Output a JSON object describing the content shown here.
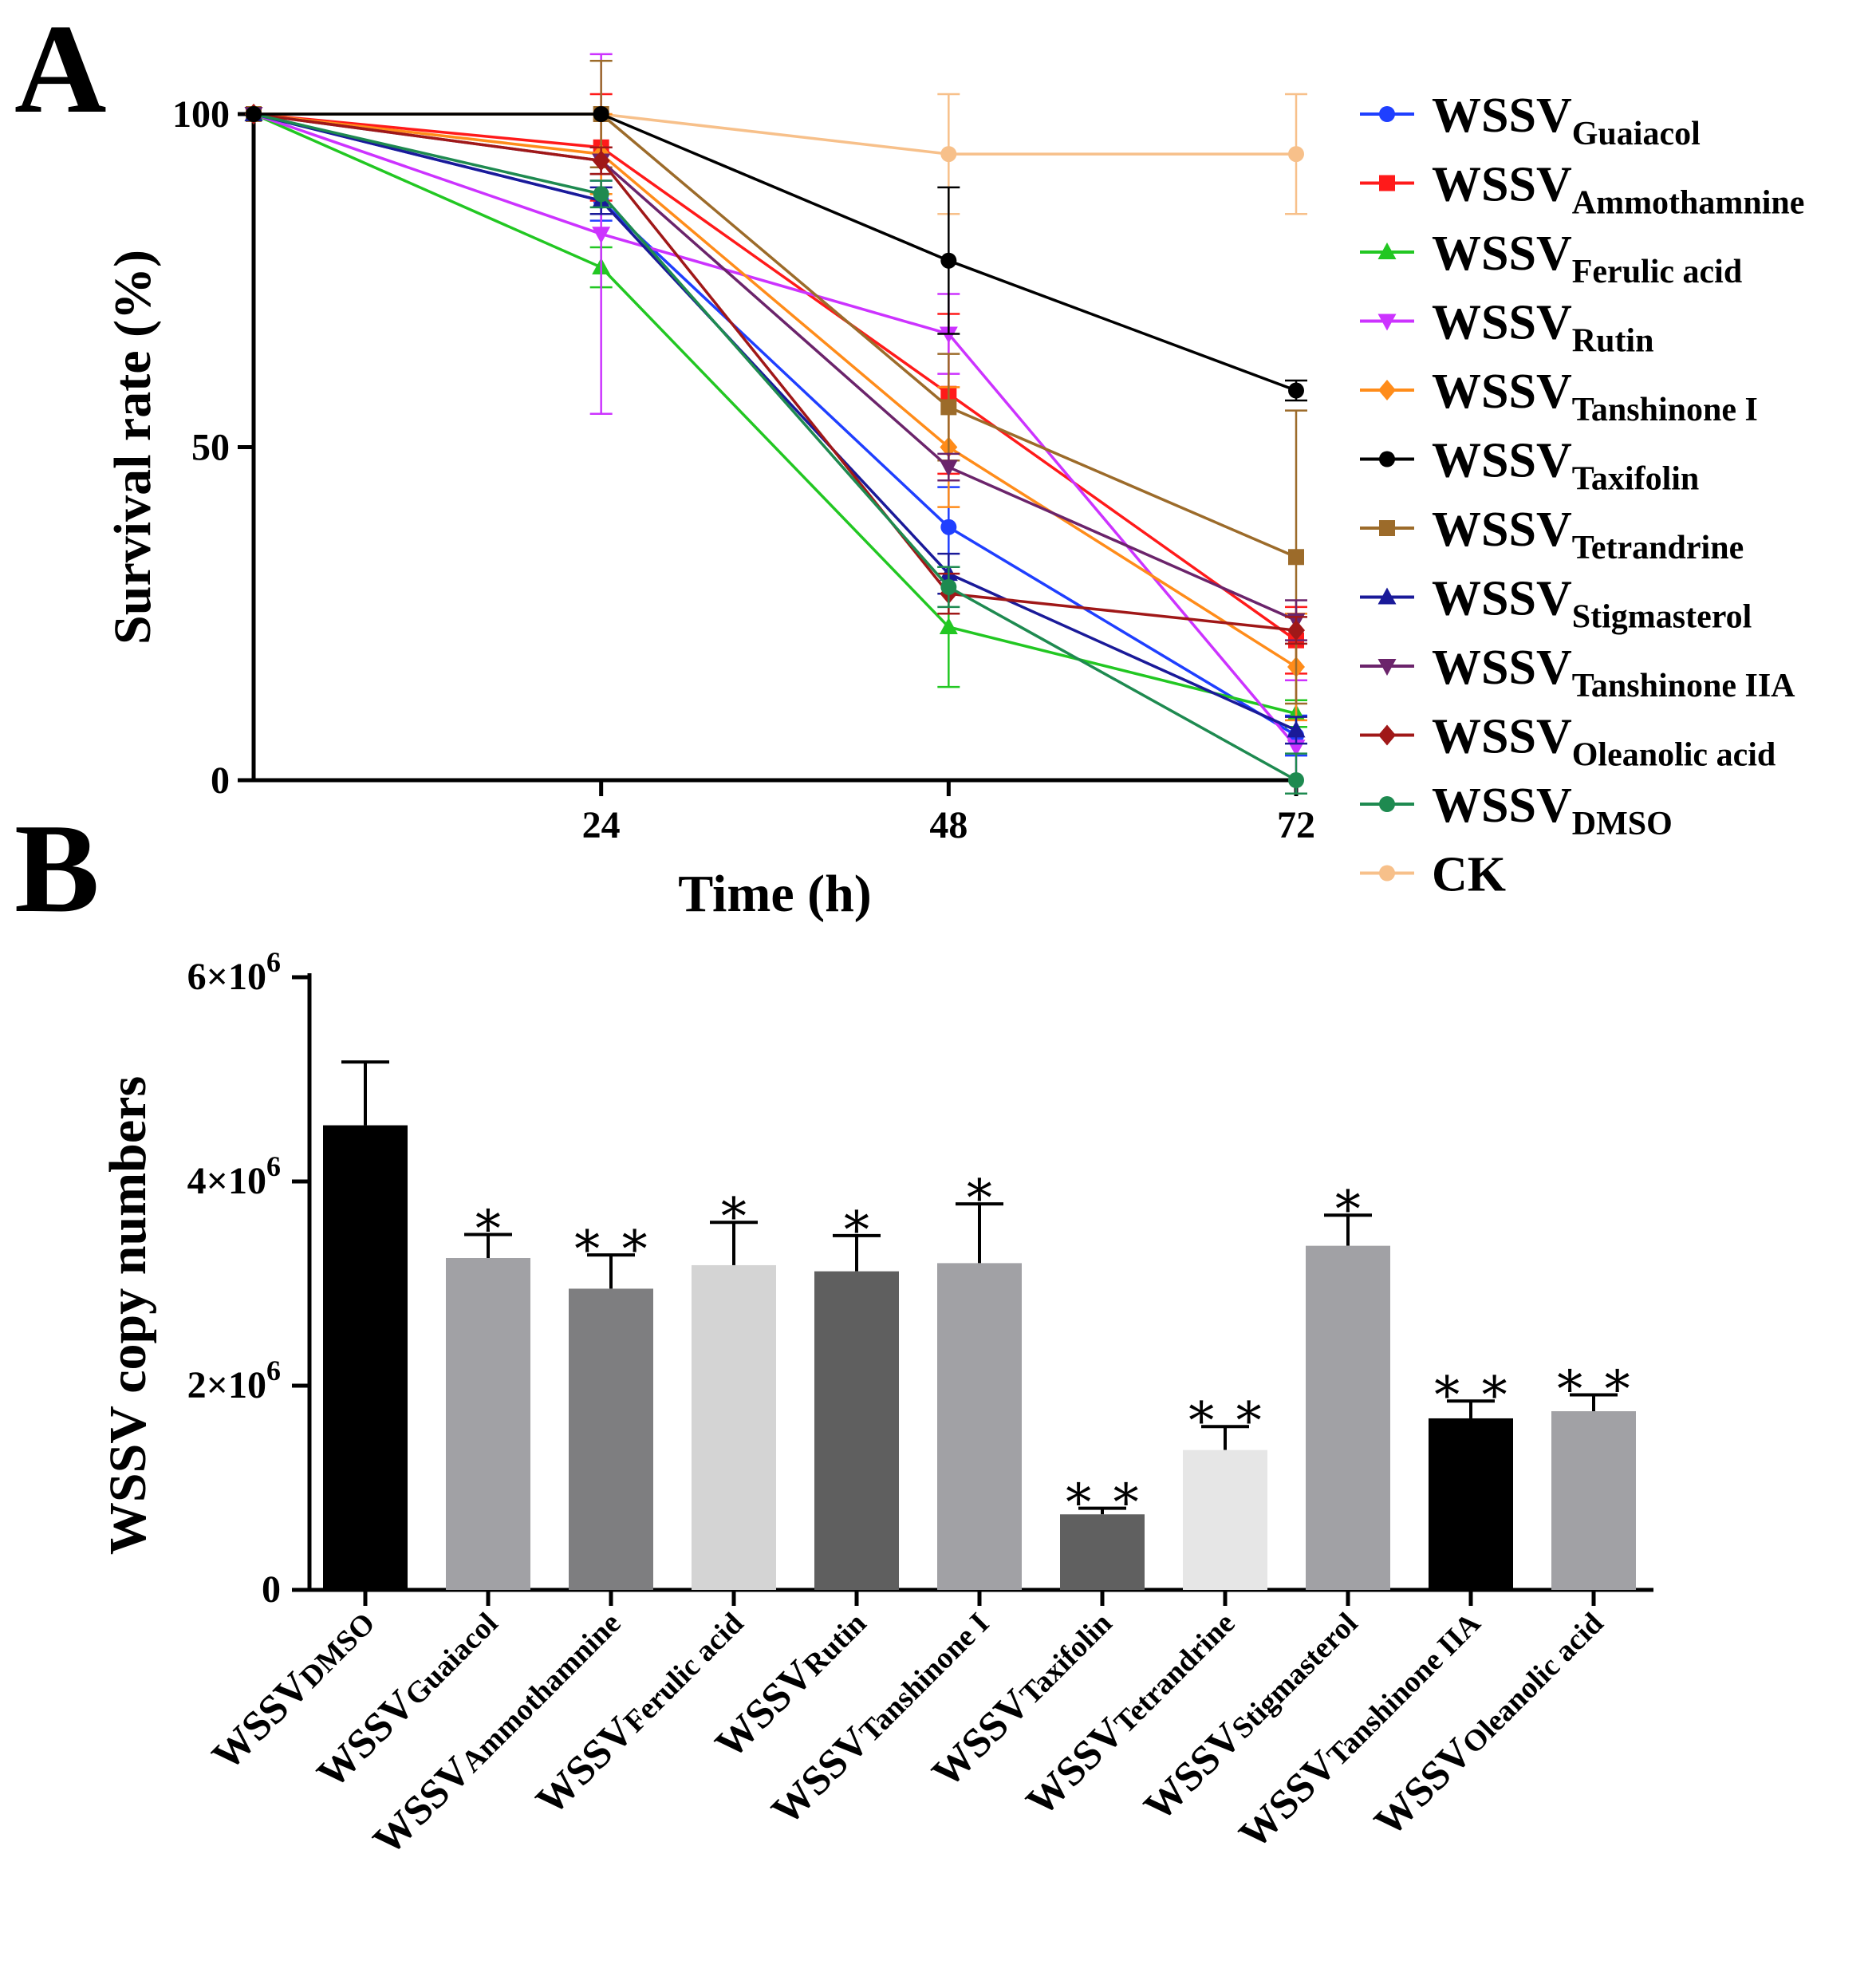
{
  "chart_data": [
    {
      "panel": "A",
      "type": "line",
      "xlabel": "Time (h)",
      "ylabel": "Survival rate (%)",
      "x": [
        0,
        24,
        48,
        72
      ],
      "x_tick_labels": [
        "24",
        "48",
        "72"
      ],
      "y_tick_labels": [
        "0",
        "50",
        "100"
      ],
      "ylim": [
        0,
        100
      ],
      "xlim": [
        0,
        72
      ],
      "legend_position": "right",
      "series": [
        {
          "name": "WSSV",
          "sub": "Guaiacol",
          "color": "#1f3fff",
          "marker": "circle",
          "values": [
            100,
            87,
            38,
            6.7
          ],
          "errors": [
            0,
            3,
            6,
            3
          ]
        },
        {
          "name": "WSSV",
          "sub": "Ammothamnine",
          "color": "#ff1a1a",
          "marker": "square",
          "values": [
            100,
            95,
            58,
            21
          ],
          "errors": [
            0,
            8,
            12,
            5
          ]
        },
        {
          "name": "WSSV",
          "sub": "Ferulic acid",
          "color": "#22c722",
          "marker": "triangle-up",
          "values": [
            100,
            77,
            23,
            10
          ],
          "errors": [
            0,
            3,
            9,
            2
          ]
        },
        {
          "name": "WSSV",
          "sub": "Rutin",
          "color": "#cc33ff",
          "marker": "triangle-down",
          "values": [
            100,
            82,
            67,
            5
          ],
          "errors": [
            0,
            27,
            6,
            10
          ]
        },
        {
          "name": "WSSV",
          "sub": "Tanshinone I",
          "color": "#ff8c1a",
          "marker": "diamond",
          "values": [
            100,
            94,
            50,
            17
          ],
          "errors": [
            0,
            6,
            9,
            8
          ]
        },
        {
          "name": "WSSV",
          "sub": "Taxifolin",
          "color": "#000000",
          "marker": "circle",
          "values": [
            100,
            100,
            78,
            58.5
          ],
          "errors": [
            0,
            0,
            11,
            1.5
          ]
        },
        {
          "name": "WSSV",
          "sub": "Tetrandrine",
          "color": "#9c6b2a",
          "marker": "square",
          "values": [
            100,
            100,
            56,
            33.5
          ],
          "errors": [
            0,
            8,
            8,
            22
          ]
        },
        {
          "name": "WSSV",
          "sub": "Stigmasterol",
          "color": "#1a1a99",
          "marker": "triangle-up",
          "values": [
            100,
            87,
            31,
            7.5
          ],
          "errors": [
            0,
            2,
            3,
            2
          ]
        },
        {
          "name": "WSSV",
          "sub": "Tanshinone IIA",
          "color": "#6b246b",
          "marker": "triangle-down",
          "values": [
            100,
            93,
            47,
            24
          ],
          "errors": [
            0,
            2,
            2,
            3
          ]
        },
        {
          "name": "WSSV",
          "sub": "Oleanolic acid",
          "color": "#a01818",
          "marker": "diamond",
          "values": [
            100,
            93,
            28,
            22.5
          ],
          "errors": [
            0,
            2,
            3,
            2
          ]
        },
        {
          "name": "WSSV",
          "sub": "DMSO",
          "color": "#1e8a50",
          "marker": "circle",
          "values": [
            100,
            88,
            29,
            0
          ],
          "errors": [
            0,
            2,
            3,
            4
          ]
        },
        {
          "name": "CK",
          "sub": "",
          "color": "#f7c08a",
          "marker": "circle",
          "values": [
            100,
            100,
            94,
            94
          ],
          "errors": [
            0,
            0,
            9,
            9
          ]
        }
      ]
    },
    {
      "panel": "B",
      "type": "bar",
      "ylabel": "WSSV copy numbers",
      "y_tick_labels": [
        {
          "coef": "0",
          "exp": ""
        },
        {
          "coef": "2×10",
          "exp": "6"
        },
        {
          "coef": "4×10",
          "exp": "6"
        },
        {
          "coef": "6×10",
          "exp": "6"
        }
      ],
      "ylim": [
        0,
        6000000
      ],
      "categories": [
        {
          "name": "WSSV",
          "sub": "DMSO"
        },
        {
          "name": "WSSV",
          "sub": "Guaiacol"
        },
        {
          "name": "WSSV",
          "sub": "Ammothamnine"
        },
        {
          "name": "WSSV",
          "sub": "Ferulic acid"
        },
        {
          "name": "WSSV",
          "sub": "Rutin"
        },
        {
          "name": "WSSV",
          "sub": "Tanshinone I"
        },
        {
          "name": "WSSV",
          "sub": "Taxifolin"
        },
        {
          "name": "WSSV",
          "sub": "Tetrandrine"
        },
        {
          "name": "WSSV",
          "sub": "Stigmasterol"
        },
        {
          "name": "WSSV",
          "sub": "Tanshinone IIA"
        },
        {
          "name": "WSSV",
          "sub": "Oleanolic acid"
        }
      ],
      "values": [
        4550000,
        3250000,
        2950000,
        3180000,
        3120000,
        3200000,
        740000,
        1370000,
        3370000,
        1680000,
        1750000
      ],
      "errors": [
        620000,
        230000,
        330000,
        420000,
        350000,
        580000,
        60000,
        230000,
        300000,
        170000,
        160000
      ],
      "significance": [
        "",
        "*",
        "**",
        "*",
        "*",
        "*",
        "**",
        "**",
        "*",
        "**",
        "**"
      ],
      "bar_colors": [
        "#000000",
        "#a1a1a5",
        "#7e7e80",
        "#d4d4d4",
        "#5f5f5f",
        "#a1a1a5",
        "#606060",
        "#e6e6e6",
        "#a1a1a5",
        "#000000",
        "#a1a1a5"
      ]
    }
  ],
  "panels": {
    "a_letter": "A",
    "b_letter": "B"
  }
}
